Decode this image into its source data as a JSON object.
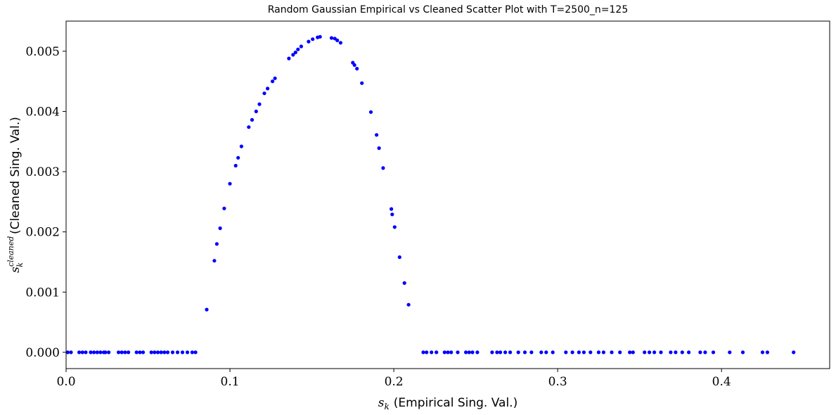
{
  "chart_data": {
    "type": "scatter",
    "title": "Random Gaussian Empirical vs Cleaned Scatter Plot with T=2500_n=125",
    "xlabel": {
      "symbol": "s",
      "subscript": "k",
      "text": "(Empirical Sing. Val.)"
    },
    "ylabel": {
      "symbol": "s",
      "subscript": "k",
      "superscript": "cleaned",
      "text": "(Cleaned Sing. Val.)"
    },
    "xlim": [
      0.0,
      0.466
    ],
    "ylim": [
      -0.00027,
      0.0055
    ],
    "xticks": [
      0.0,
      0.1,
      0.2,
      0.3,
      0.4
    ],
    "xtick_labels": [
      "0.0",
      "0.1",
      "0.2",
      "0.3",
      "0.4"
    ],
    "yticks": [
      0.0,
      0.001,
      0.002,
      0.003,
      0.004,
      0.005
    ],
    "ytick_labels": [
      "0.000",
      "0.001",
      "0.002",
      "0.003",
      "0.004",
      "0.005"
    ],
    "grid": false,
    "marker_color": "#0000ff",
    "points": [
      [
        0.001,
        0
      ],
      [
        0.003,
        0
      ],
      [
        0.008,
        0
      ],
      [
        0.01,
        0
      ],
      [
        0.012,
        0
      ],
      [
        0.015,
        0
      ],
      [
        0.017,
        0
      ],
      [
        0.019,
        0
      ],
      [
        0.021,
        0
      ],
      [
        0.023,
        0
      ],
      [
        0.024,
        0
      ],
      [
        0.026,
        0
      ],
      [
        0.032,
        0
      ],
      [
        0.034,
        0
      ],
      [
        0.036,
        0
      ],
      [
        0.038,
        0
      ],
      [
        0.043,
        0
      ],
      [
        0.045,
        0
      ],
      [
        0.047,
        0
      ],
      [
        0.052,
        0
      ],
      [
        0.054,
        0
      ],
      [
        0.056,
        0
      ],
      [
        0.058,
        0
      ],
      [
        0.06,
        0
      ],
      [
        0.062,
        0
      ],
      [
        0.065,
        0
      ],
      [
        0.068,
        0
      ],
      [
        0.071,
        0
      ],
      [
        0.074,
        0
      ],
      [
        0.077,
        0
      ],
      [
        0.079,
        0
      ],
      [
        0.0858,
        0.00071
      ],
      [
        0.0905,
        0.00152
      ],
      [
        0.092,
        0.0018
      ],
      [
        0.094,
        0.00206
      ],
      [
        0.0965,
        0.00239
      ],
      [
        0.1,
        0.0028
      ],
      [
        0.1035,
        0.0031
      ],
      [
        0.105,
        0.00323
      ],
      [
        0.107,
        0.00342
      ],
      [
        0.1115,
        0.00374
      ],
      [
        0.1135,
        0.00386
      ],
      [
        0.116,
        0.004
      ],
      [
        0.118,
        0.00412
      ],
      [
        0.121,
        0.0043
      ],
      [
        0.123,
        0.00438
      ],
      [
        0.126,
        0.0045
      ],
      [
        0.1275,
        0.00455
      ],
      [
        0.136,
        0.00488
      ],
      [
        0.1385,
        0.00494
      ],
      [
        0.14,
        0.00498
      ],
      [
        0.1415,
        0.00503
      ],
      [
        0.1435,
        0.00508
      ],
      [
        0.148,
        0.00516
      ],
      [
        0.1505,
        0.0052
      ],
      [
        0.1535,
        0.00523
      ],
      [
        0.155,
        0.00524
      ],
      [
        0.162,
        0.00522
      ],
      [
        0.164,
        0.00521
      ],
      [
        0.1655,
        0.00518
      ],
      [
        0.1675,
        0.00514
      ],
      [
        0.175,
        0.00481
      ],
      [
        0.176,
        0.00477
      ],
      [
        0.1775,
        0.00471
      ],
      [
        0.1805,
        0.00447
      ],
      [
        0.186,
        0.00399
      ],
      [
        0.1895,
        0.00361
      ],
      [
        0.191,
        0.00339
      ],
      [
        0.1935,
        0.00306
      ],
      [
        0.1985,
        0.00238
      ],
      [
        0.199,
        0.00229
      ],
      [
        0.2005,
        0.00208
      ],
      [
        0.2035,
        0.00158
      ],
      [
        0.2065,
        0.00115
      ],
      [
        0.209,
        0.00079
      ],
      [
        0.218,
        0
      ],
      [
        0.22,
        0
      ],
      [
        0.223,
        0
      ],
      [
        0.226,
        0
      ],
      [
        0.231,
        0
      ],
      [
        0.233,
        0
      ],
      [
        0.235,
        0
      ],
      [
        0.239,
        0
      ],
      [
        0.244,
        0
      ],
      [
        0.246,
        0
      ],
      [
        0.248,
        0
      ],
      [
        0.251,
        0
      ],
      [
        0.26,
        0
      ],
      [
        0.263,
        0
      ],
      [
        0.265,
        0
      ],
      [
        0.268,
        0
      ],
      [
        0.271,
        0
      ],
      [
        0.276,
        0
      ],
      [
        0.28,
        0
      ],
      [
        0.284,
        0
      ],
      [
        0.29,
        0
      ],
      [
        0.293,
        0
      ],
      [
        0.297,
        0
      ],
      [
        0.305,
        0
      ],
      [
        0.309,
        0
      ],
      [
        0.313,
        0
      ],
      [
        0.316,
        0
      ],
      [
        0.32,
        0
      ],
      [
        0.325,
        0
      ],
      [
        0.328,
        0
      ],
      [
        0.333,
        0
      ],
      [
        0.338,
        0
      ],
      [
        0.344,
        0
      ],
      [
        0.346,
        0
      ],
      [
        0.353,
        0
      ],
      [
        0.356,
        0
      ],
      [
        0.359,
        0
      ],
      [
        0.363,
        0
      ],
      [
        0.369,
        0
      ],
      [
        0.372,
        0
      ],
      [
        0.376,
        0
      ],
      [
        0.38,
        0
      ],
      [
        0.387,
        0
      ],
      [
        0.39,
        0
      ],
      [
        0.395,
        0
      ],
      [
        0.405,
        0
      ],
      [
        0.413,
        0
      ],
      [
        0.425,
        0
      ],
      [
        0.428,
        0
      ],
      [
        0.444,
        0
      ]
    ]
  }
}
